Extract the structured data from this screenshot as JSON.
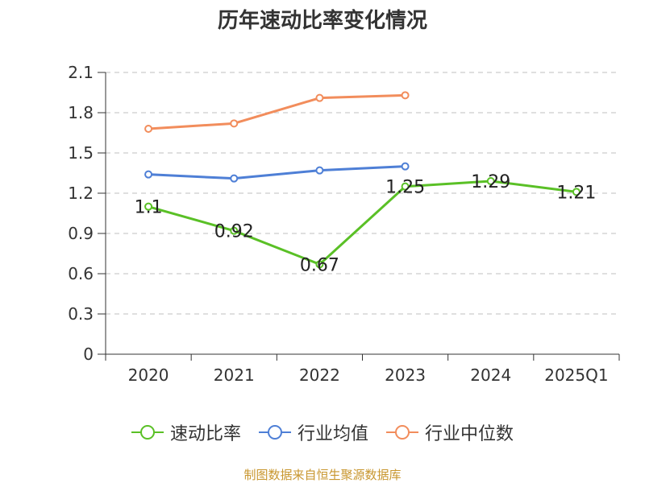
{
  "chart_data": {
    "type": "line",
    "title": "历年速动比率变化情况",
    "categories": [
      "2020",
      "2021",
      "2022",
      "2023",
      "2024",
      "2025Q1"
    ],
    "y_ticks": [
      "0",
      "0.3",
      "0.6",
      "0.9",
      "1.2",
      "1.5",
      "1.8",
      "2.1"
    ],
    "ylim": [
      0,
      2.1
    ],
    "grid": true,
    "legend_position": "bottom",
    "series": [
      {
        "name": "速动比率",
        "color": "#5ac026",
        "values": [
          1.1,
          0.92,
          0.67,
          1.25,
          1.29,
          1.21
        ],
        "labels": [
          "1.1",
          "0.92",
          "0.67",
          "1.25",
          "1.29",
          "1.21"
        ]
      },
      {
        "name": "行业均值",
        "color": "#4e7fd6",
        "values": [
          1.34,
          1.31,
          1.37,
          1.4,
          null,
          null
        ]
      },
      {
        "name": "行业中位数",
        "color": "#f28d5c",
        "values": [
          1.68,
          1.72,
          1.91,
          1.93,
          null,
          null
        ]
      }
    ]
  },
  "footer": "制图数据来自恒生聚源数据库"
}
